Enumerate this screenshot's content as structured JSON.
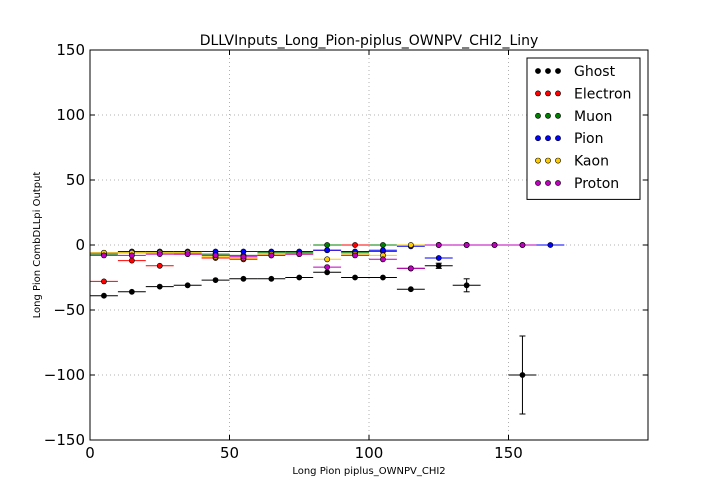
{
  "chart_data": {
    "type": "scatter",
    "title": "DLLVInputs_Long_Pion-piplus_OWNPV_CHI2_Liny",
    "xlabel": "Long Pion piplus_OWNPV_CHI2",
    "ylabel": "Long Pion CombDLLpi Output",
    "xlim": [
      0,
      200
    ],
    "ylim": [
      -150,
      150
    ],
    "xticks": [
      "0",
      "50",
      "100",
      "150"
    ],
    "yticks": [
      "150",
      "100",
      "50",
      "0",
      "−50",
      "−100",
      "−150"
    ],
    "xtick_values": [
      0,
      50,
      100,
      150
    ],
    "ytick_values": [
      150,
      100,
      50,
      0,
      -50,
      -100,
      -150
    ],
    "grid": true,
    "legend_position": "top-right",
    "series": [
      {
        "name": "Ghost",
        "color": "#000000",
        "x": [
          5,
          15,
          25,
          35,
          45,
          55,
          65,
          75,
          85,
          95,
          105,
          115,
          125,
          135,
          155
        ],
        "y": [
          -39,
          -36,
          -32,
          -31,
          -27,
          -26,
          -26,
          -25,
          -21,
          -25,
          -25,
          -34,
          -16,
          -31,
          -100
        ],
        "xerr": 5,
        "yerr": [
          1,
          1,
          1,
          1,
          1,
          1,
          1,
          1,
          1,
          1,
          1,
          1,
          2,
          5,
          30
        ]
      },
      {
        "name": "Electron",
        "color": "#ff0000",
        "x": [
          5,
          15,
          25,
          35,
          45,
          55,
          65,
          75,
          85,
          95,
          105,
          115,
          125,
          135,
          145,
          155
        ],
        "y": [
          -28,
          -12,
          -16,
          -7,
          -10,
          -11,
          -8,
          -7,
          -4,
          0,
          -5,
          -18,
          0,
          0,
          0,
          0
        ],
        "xerr": 5,
        "yerr": 1
      },
      {
        "name": "Muon",
        "color": "#008000",
        "x": [
          5,
          15,
          25,
          35,
          45,
          55,
          65,
          75,
          85,
          95,
          105,
          115,
          125,
          135
        ],
        "y": [
          -7,
          -6,
          -6,
          -6,
          -7,
          -8,
          -6,
          -6,
          0,
          -6,
          0,
          -18,
          0,
          0
        ],
        "xerr": 5,
        "yerr": 1
      },
      {
        "name": "Pion",
        "color": "#0000ff",
        "x": [
          5,
          15,
          25,
          35,
          45,
          55,
          65,
          75,
          85,
          95,
          105,
          115,
          125,
          135,
          145,
          155,
          165
        ],
        "y": [
          -6,
          -5,
          -5,
          -5,
          -5,
          -5,
          -5,
          -5,
          -4,
          -5,
          -4,
          -1,
          -10,
          0,
          0,
          0,
          0
        ],
        "xerr": 5,
        "yerr": 1
      },
      {
        "name": "Kaon",
        "color": "#ffcc00",
        "x": [
          5,
          15,
          25,
          35,
          45,
          55,
          65,
          75,
          85,
          95,
          105,
          115,
          125,
          135
        ],
        "y": [
          -6,
          -6,
          -6,
          -6,
          -9,
          -10,
          -7,
          -7,
          -11,
          -7,
          -8,
          0,
          0,
          0
        ],
        "xerr": 5,
        "yerr": 1
      },
      {
        "name": "Proton",
        "color": "#bf00bf",
        "x": [
          5,
          15,
          25,
          35,
          45,
          55,
          65,
          75,
          85,
          95,
          105,
          115,
          125,
          135,
          145,
          155
        ],
        "y": [
          -8,
          -8,
          -7,
          -7,
          -8,
          -9,
          -8,
          -7,
          -17,
          -8,
          -11,
          -18,
          0,
          0,
          0,
          0
        ],
        "xerr": 5,
        "yerr": 1
      }
    ]
  }
}
